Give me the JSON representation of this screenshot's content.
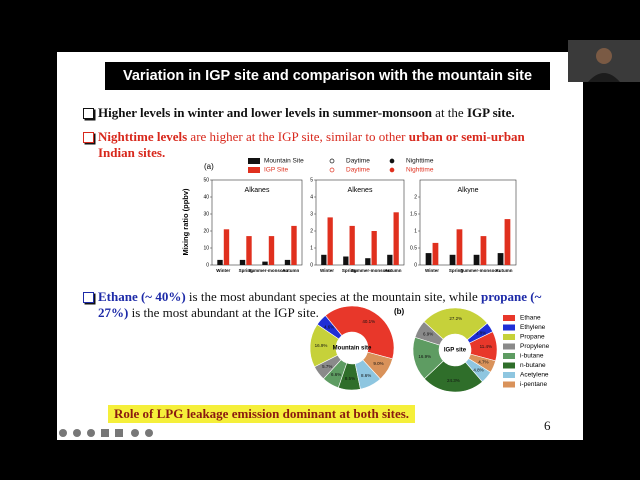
{
  "slide": {
    "title": "Variation in IGP site and comparison with the mountain site",
    "bullets": [
      [
        "Higher levels in winter",
        " and ",
        "lower levels in summer-monsoon",
        " at the ",
        "IGP site",
        "."
      ],
      [
        "Nighttime levels",
        " are higher at the IGP site, similar to other ",
        "urban or semi-urban Indian sites."
      ],
      [
        "Ethane (~ 40%)",
        " is the most abundant species at the mountain site, while ",
        "propane (~ 27%)",
        " is the most abundant at the IGP site."
      ]
    ],
    "panel_a": "(a)",
    "panel_b": "(b)",
    "conclusion": "Role of LPG leakage emission dominant at both sites.",
    "page_number": "6"
  },
  "chart_data": [
    {
      "type": "bar",
      "title": "Alkanes",
      "ylabel": "Mixing ratio (ppbv)",
      "categories": [
        "Winter",
        "Spring",
        "Summer-monsoon",
        "Autumn"
      ],
      "ylim": [
        0,
        50
      ],
      "yticks": [
        0,
        10,
        20,
        30,
        40,
        50
      ],
      "series": [
        {
          "name": "Mountain Site",
          "color": "#111111",
          "markers": [
            "Daytime",
            "Nighttime"
          ],
          "values": [
            3,
            3,
            2,
            3
          ]
        },
        {
          "name": "IGP Site",
          "color": "#e0301e",
          "markers": [
            "Daytime",
            "Nighttime"
          ],
          "values": [
            21,
            17,
            17,
            23
          ]
        }
      ]
    },
    {
      "type": "bar",
      "title": "Alkenes",
      "categories": [
        "Winter",
        "Spring",
        "Summer-monsoon",
        "Autumn"
      ],
      "ylim": [
        0,
        5
      ],
      "yticks": [
        0,
        1,
        2,
        3,
        4,
        5
      ],
      "series": [
        {
          "color": "#111111",
          "values": [
            0.6,
            0.5,
            0.4,
            0.6
          ]
        },
        {
          "color": "#e0301e",
          "values": [
            2.8,
            2.3,
            2.0,
            3.1
          ]
        }
      ]
    },
    {
      "type": "bar",
      "title": "Alkyne",
      "categories": [
        "Winter",
        "Spring",
        "Summer-monsoon",
        "Autumn"
      ],
      "ylim": [
        0,
        2.5
      ],
      "yticks": [
        0,
        0.5,
        1,
        1.5,
        2
      ],
      "series": [
        {
          "color": "#111111",
          "values": [
            0.35,
            0.3,
            0.3,
            0.35
          ]
        },
        {
          "color": "#e0301e",
          "values": [
            0.65,
            1.05,
            0.85,
            1.35
          ]
        }
      ]
    },
    {
      "type": "pie",
      "title": "Mountain site",
      "categories": [
        "Ethane",
        "Ethylene",
        "Propane",
        "Propylene",
        "i-butane",
        "n-butane",
        "Acetylene",
        "i-pentane"
      ],
      "colors": [
        "#e8372a",
        "#1f2fd6",
        "#c6d13a",
        "#8a8a8a",
        "#5e9c62",
        "#2f6e2a",
        "#8ec6e0",
        "#d9925a"
      ],
      "values": [
        40.1,
        4.6,
        16.9,
        5.7,
        6.6,
        8.5,
        8.6,
        9.0
      ],
      "value_labels": [
        "40.1%",
        "4.6%",
        "16.9%",
        "5.7%",
        "6.6%",
        "8.5%",
        "8.6%",
        "9.0%"
      ]
    },
    {
      "type": "pie",
      "title": "IGP site",
      "categories": [
        "Ethane",
        "Ethylene",
        "Propane",
        "Propylene",
        "i-butane",
        "n-butane",
        "Acetylene",
        "i-pentane"
      ],
      "colors": [
        "#e8372a",
        "#1f2fd6",
        "#c6d13a",
        "#8a8a8a",
        "#5e9c62",
        "#2f6e2a",
        "#8ec6e0",
        "#d9925a"
      ],
      "values": [
        11.4,
        3.8,
        27.2,
        6.9,
        16.9,
        24.3,
        4.8,
        4.7
      ],
      "value_labels": [
        "11.4%",
        "3.8%",
        "27.2%",
        "6.9%",
        "16.9%",
        "24.3%",
        "4.8%",
        "4.7%"
      ]
    }
  ]
}
